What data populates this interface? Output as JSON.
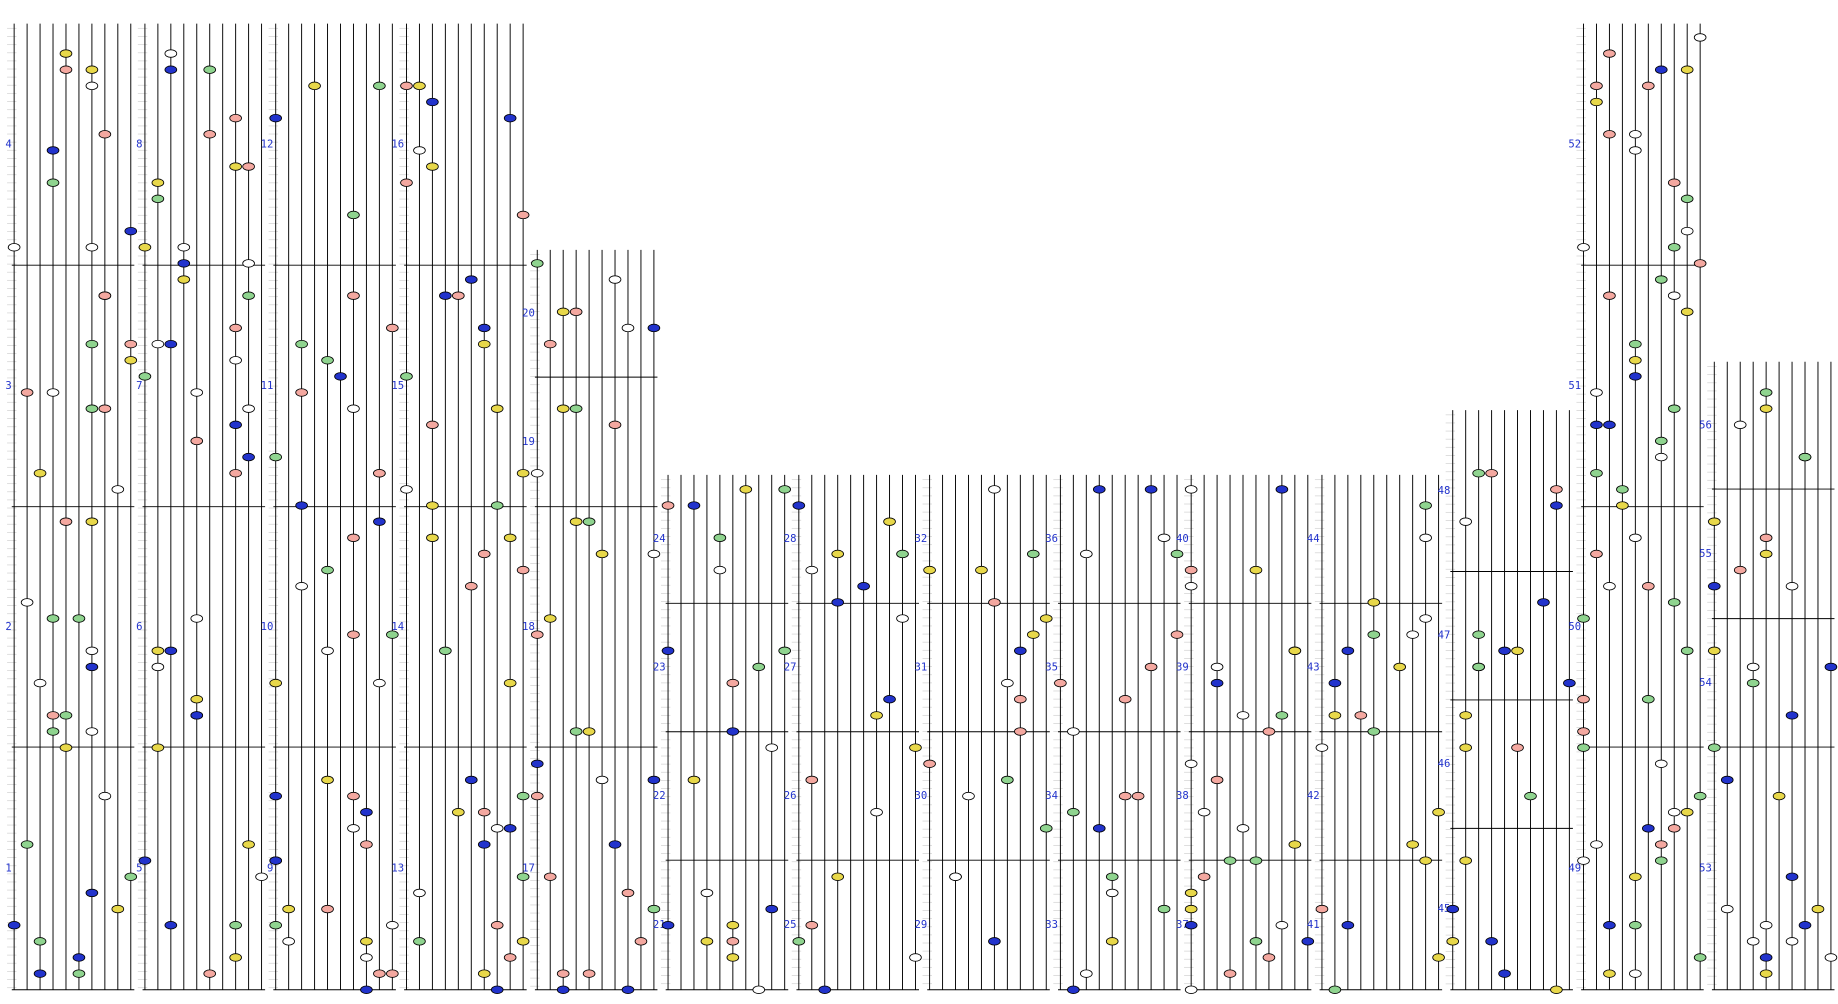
{
  "columns": [
    {
      "labels": [
        "1",
        "2",
        "3",
        "4"
      ]
    },
    {
      "labels": [
        "5",
        "6",
        "7",
        "8"
      ]
    },
    {
      "labels": [
        "9",
        "10",
        "11",
        "12"
      ]
    },
    {
      "labels": [
        "13",
        "14",
        "15",
        "16"
      ]
    },
    {
      "labels": [
        "17",
        "18",
        "19",
        "20"
      ]
    },
    {
      "labels": [
        "21",
        "22",
        "23",
        "24"
      ]
    },
    {
      "labels": [
        "25",
        "26",
        "27",
        "28"
      ]
    },
    {
      "labels": [
        "29",
        "30",
        "31",
        "32"
      ]
    },
    {
      "labels": [
        "33",
        "34",
        "35",
        "36"
      ]
    },
    {
      "labels": [
        "37",
        "38",
        "39",
        "40"
      ]
    },
    {
      "labels": [
        "41",
        "42",
        "43",
        "44"
      ]
    },
    {
      "labels": [
        "45",
        "46",
        "47",
        "48"
      ]
    },
    {
      "labels": [
        "49",
        "50",
        "51",
        "52"
      ]
    },
    {
      "labels": [
        "53",
        "54",
        "55",
        "56"
      ]
    }
  ]
}
